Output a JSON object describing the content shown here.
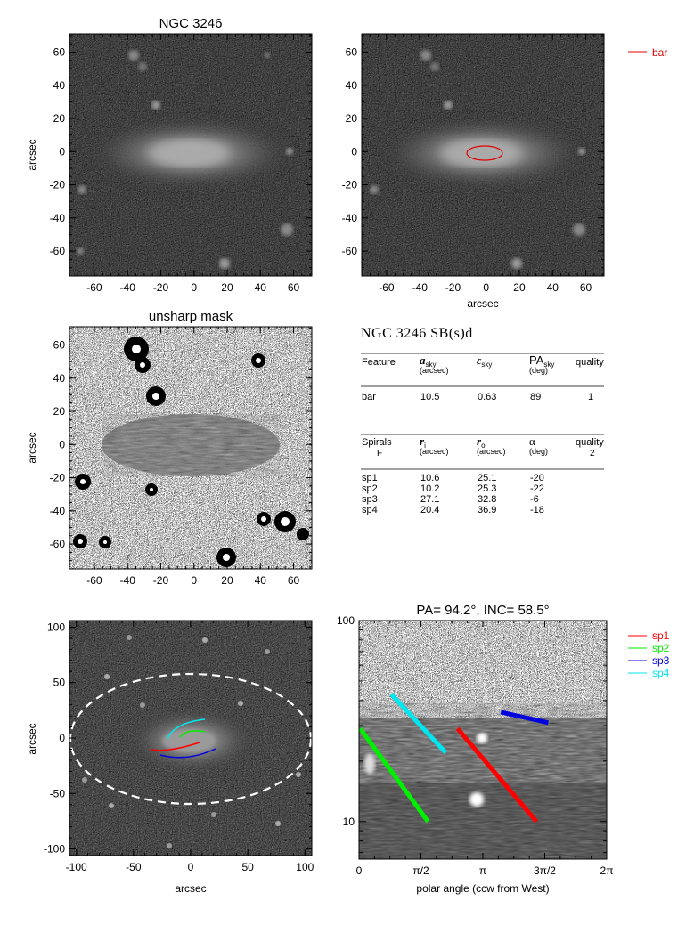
{
  "panels": {
    "top_left": {
      "title": "NGC 3246",
      "ylabel": "arcsec",
      "xticks": [
        "-60",
        "-40",
        "-20",
        "0",
        "20",
        "40",
        "60"
      ],
      "yticks": [
        "60",
        "40",
        "20",
        "0",
        "-20",
        "-40",
        "-60"
      ]
    },
    "top_right": {
      "xlabel": "arcsec",
      "legend": "bar",
      "legend_color": "#e00000",
      "xticks": [
        "-60",
        "-40",
        "-20",
        "0",
        "20",
        "40",
        "60"
      ],
      "yticks": [
        "60",
        "40",
        "20",
        "0",
        "-20",
        "-40",
        "-60"
      ]
    },
    "mid_left": {
      "title": "unsharp mask",
      "ylabel": "arcsec",
      "xticks": [
        "-60",
        "-40",
        "-20",
        "0",
        "20",
        "40",
        "60"
      ],
      "yticks": [
        "60",
        "40",
        "20",
        "0",
        "-20",
        "-40",
        "-60"
      ]
    },
    "bottom_left": {
      "xlabel": "arcsec",
      "ylabel": "arcsec",
      "xticks": [
        "-100",
        "-50",
        "0",
        "50",
        "100"
      ],
      "yticks": [
        "100",
        "50",
        "0",
        "-50",
        "-100"
      ]
    },
    "bottom_right": {
      "title": "PA=  94.2°, INC=  58.5°",
      "xlabel": "polar angle (ccw from West)",
      "xticks": [
        "0",
        "π/2",
        "π",
        "3π/2",
        "2π"
      ],
      "yticks": [
        "100",
        "10"
      ],
      "legend": [
        {
          "name": "sp1",
          "color": "#ff0000"
        },
        {
          "name": "sp2",
          "color": "#00ee00"
        },
        {
          "name": "sp3",
          "color": "#0000dd"
        },
        {
          "name": "sp4",
          "color": "#00e5ee"
        }
      ]
    }
  },
  "table": {
    "title": "NGC 3246  SB(s)d",
    "bar_header": {
      "feature": "Feature",
      "a": "a",
      "a_sub": "sky",
      "a_unit": "(arcsec)",
      "e": "ε",
      "e_sub": "sky",
      "pa": "PA",
      "pa_sub": "sky",
      "pa_unit": "(deg)",
      "quality": "quality"
    },
    "bar_row": {
      "feature": "bar",
      "a": "10.5",
      "e": "0.63",
      "pa": "89",
      "quality": "1"
    },
    "spiral_header": {
      "feature": "Spirals",
      "sub": "F",
      "ri": "r",
      "ri_sub": "i",
      "ri_unit": "(arcsec)",
      "ro": "r",
      "ro_sub": "o",
      "ro_unit": "(arcsec)",
      "alpha": "α",
      "alpha_unit": "(deg)",
      "quality": "quality",
      "quality_val": "2"
    },
    "spirals": [
      {
        "name": "sp1",
        "ri": "10.6",
        "ro": "25.1",
        "alpha": "-20"
      },
      {
        "name": "sp2",
        "ri": "10.2",
        "ro": "25.3",
        "alpha": "-22"
      },
      {
        "name": "sp3",
        "ri": "27.1",
        "ro": "32.8",
        "alpha": "-6"
      },
      {
        "name": "sp4",
        "ri": "20.4",
        "ro": "36.9",
        "alpha": "-18"
      }
    ]
  },
  "chart_data": {
    "type": "scatter",
    "title": "PA=  94.2°, INC=  58.5°",
    "xlabel": "polar angle (ccw from West)",
    "ylabel": "",
    "xlim": [
      0,
      6.2832
    ],
    "ylim": [
      6.5,
      100
    ],
    "yscale": "log",
    "series": [
      {
        "name": "sp1",
        "color": "#ff0000",
        "x": [
          2.5,
          4.5
        ],
        "y": [
          29,
          10
        ]
      },
      {
        "name": "sp2",
        "color": "#00ee00",
        "x": [
          0.03,
          1.75
        ],
        "y": [
          29,
          10
        ]
      },
      {
        "name": "sp3",
        "color": "#0000dd",
        "x": [
          3.6,
          4.8
        ],
        "y": [
          35,
          31
        ]
      },
      {
        "name": "sp4",
        "color": "#00e5ee",
        "x": [
          0.82,
          2.2
        ],
        "y": [
          43,
          22
        ]
      }
    ]
  }
}
